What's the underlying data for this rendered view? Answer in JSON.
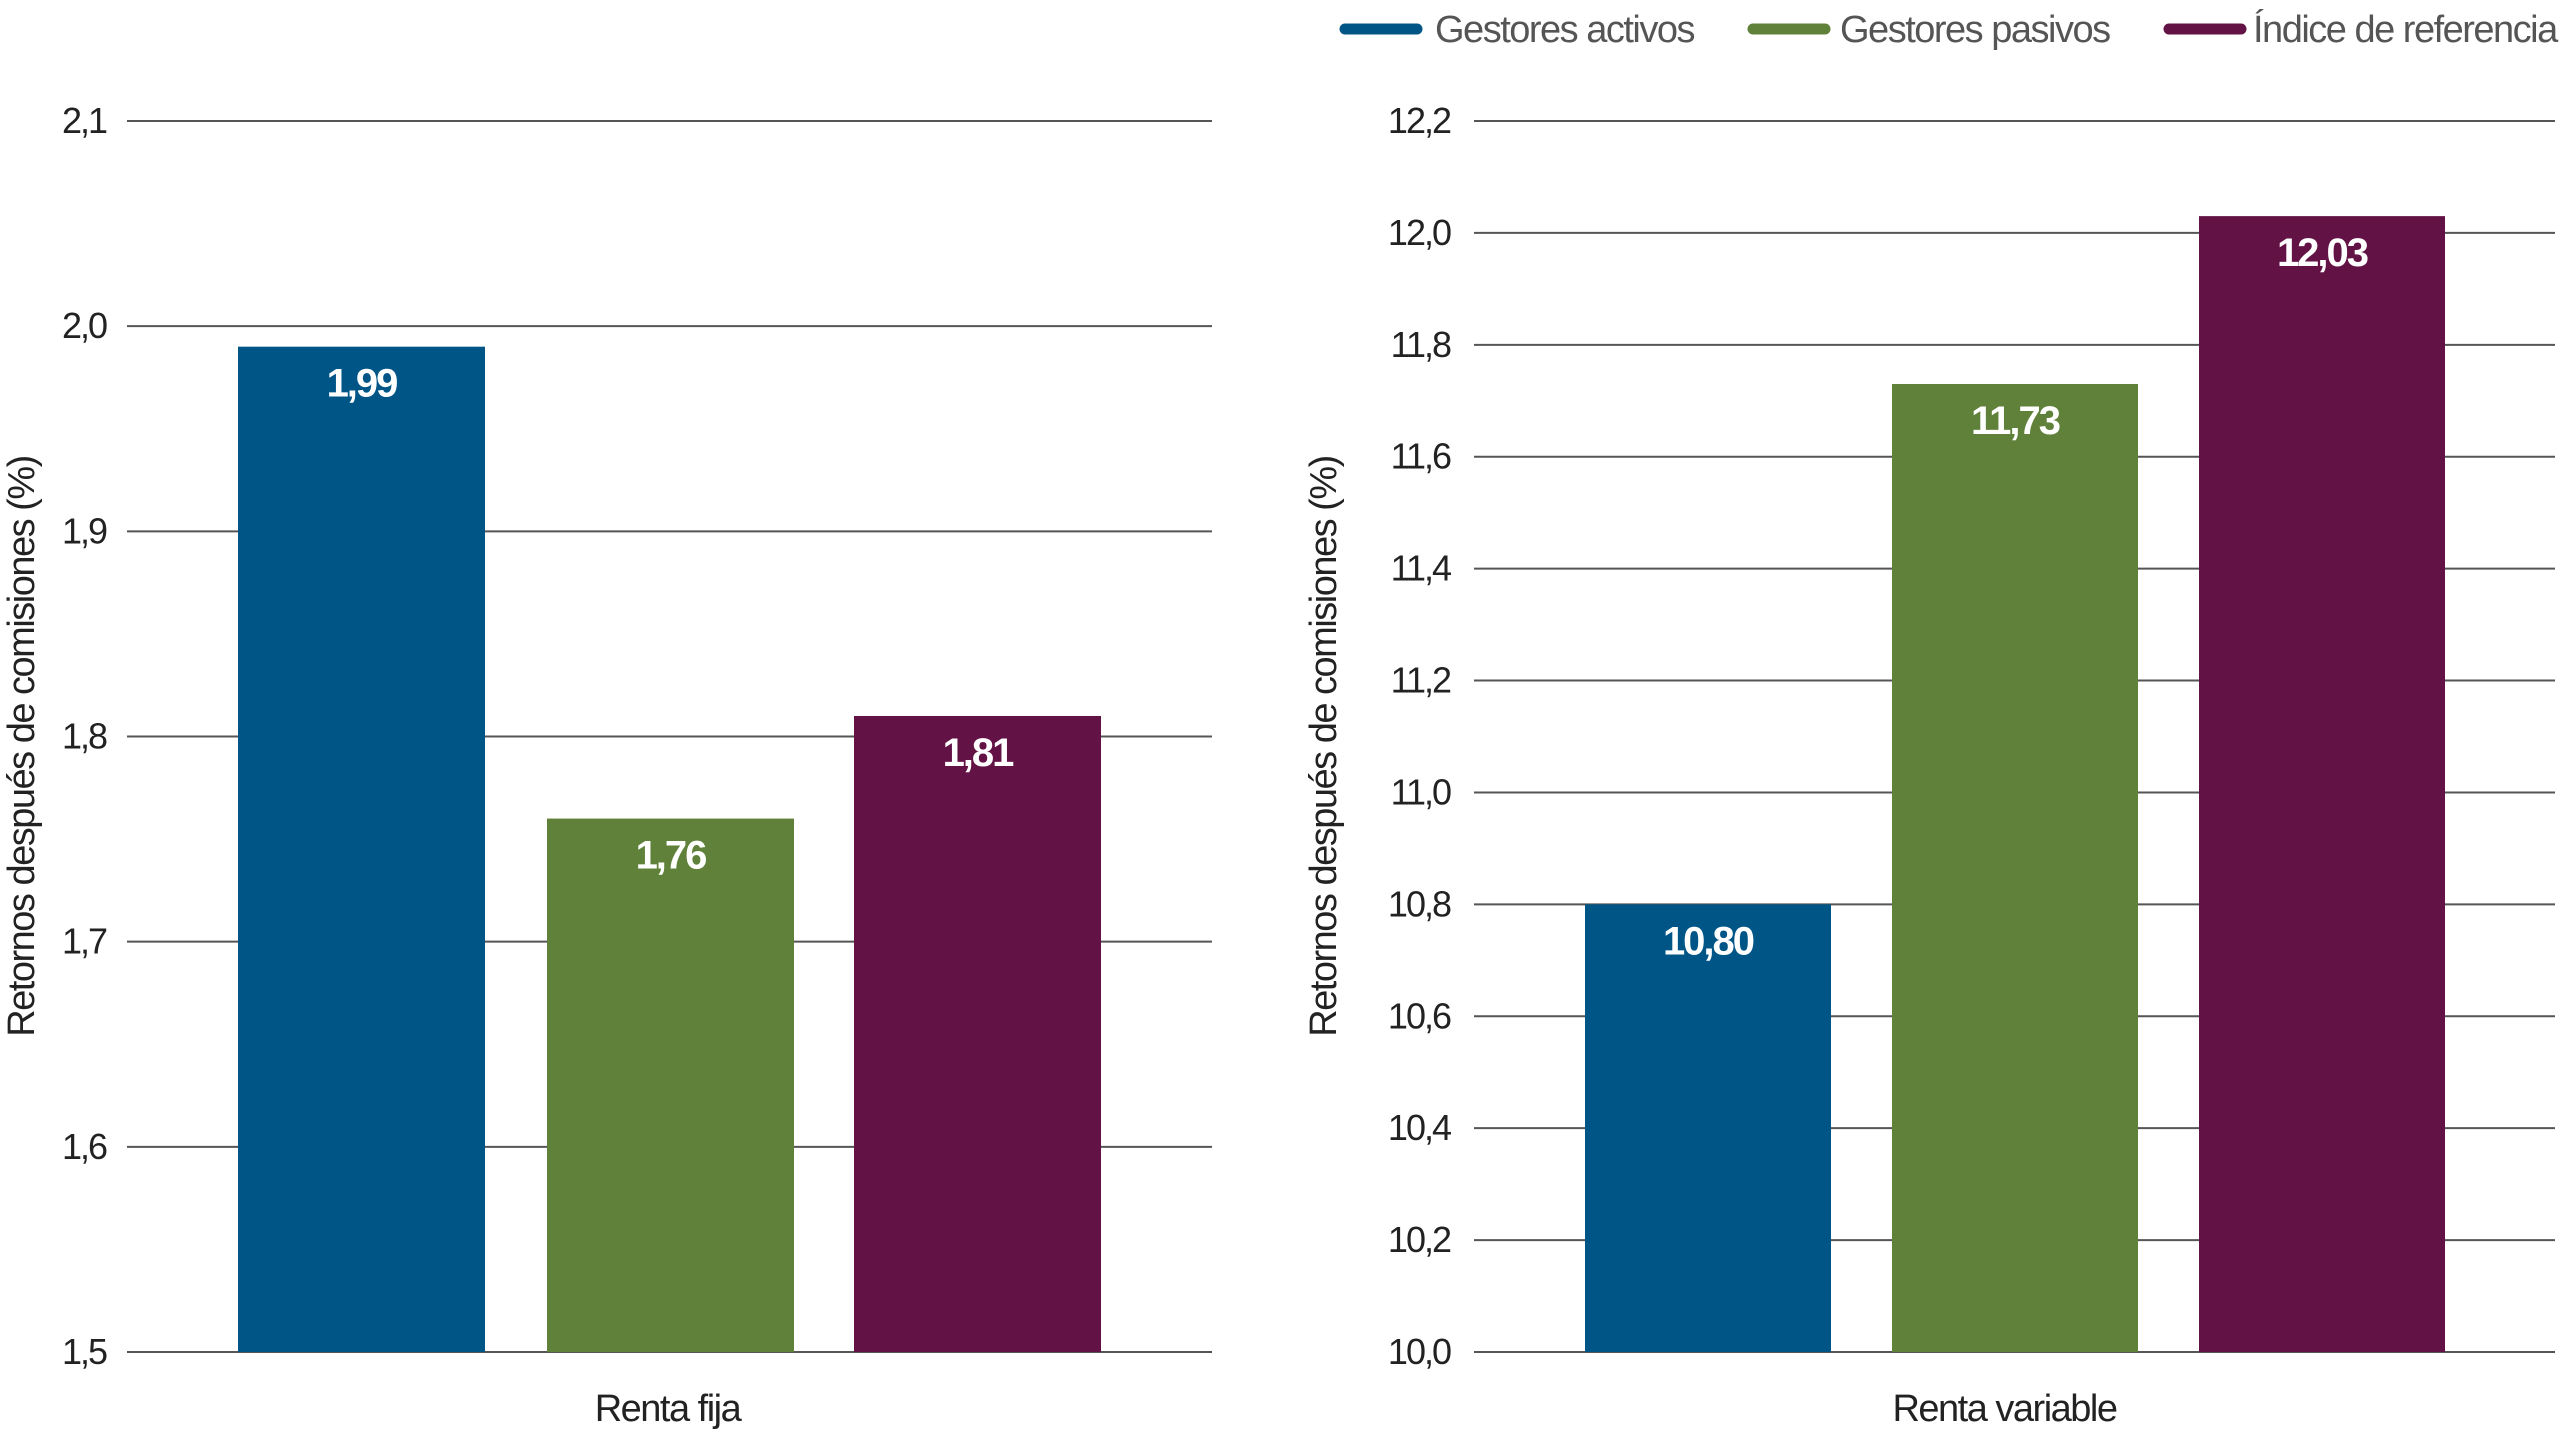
{
  "legend": {
    "position": "top-right",
    "items": [
      {
        "label": "Gestores activos",
        "color": "#005587"
      },
      {
        "label": "Gestores pasivos",
        "color": "#60813a"
      },
      {
        "label": "Índice de referencia",
        "color": "#621244"
      }
    ]
  },
  "chart_data": [
    {
      "type": "bar",
      "xlabel": "Renta fija",
      "ylabel": "Retornos después de comisiones (%)",
      "ylim": [
        1.5,
        2.1
      ],
      "yticks": [
        "1,5",
        "1,6",
        "1,7",
        "1,8",
        "1,9",
        "2,0",
        "2,1"
      ],
      "ytick_values": [
        1.5,
        1.6,
        1.7,
        1.8,
        1.9,
        2.0,
        2.1
      ],
      "grid": true,
      "series": [
        {
          "name": "Gestores activos",
          "value": 1.99,
          "label": "1,99",
          "color": "#005587"
        },
        {
          "name": "Gestores pasivos",
          "value": 1.76,
          "label": "1,76",
          "color": "#60813a"
        },
        {
          "name": "Índice de referencia",
          "value": 1.81,
          "label": "1,81",
          "color": "#621244"
        }
      ]
    },
    {
      "type": "bar",
      "xlabel": "Renta variable",
      "ylabel": "Retornos después de comisiones (%)",
      "ylim": [
        10.0,
        12.2
      ],
      "yticks": [
        "10,0",
        "10,2",
        "10,4",
        "10,6",
        "10,8",
        "11,0",
        "11,2",
        "11,4",
        "11,6",
        "11,8",
        "12,0",
        "12,2"
      ],
      "ytick_values": [
        10.0,
        10.2,
        10.4,
        10.6,
        10.8,
        11.0,
        11.2,
        11.4,
        11.6,
        11.8,
        12.0,
        12.2
      ],
      "grid": true,
      "series": [
        {
          "name": "Gestores activos",
          "value": 10.8,
          "label": "10,80",
          "color": "#005587"
        },
        {
          "name": "Gestores pasivos",
          "value": 11.73,
          "label": "11,73",
          "color": "#60813a"
        },
        {
          "name": "Índice de referencia",
          "value": 12.03,
          "label": "12,03",
          "color": "#621244"
        }
      ]
    }
  ]
}
